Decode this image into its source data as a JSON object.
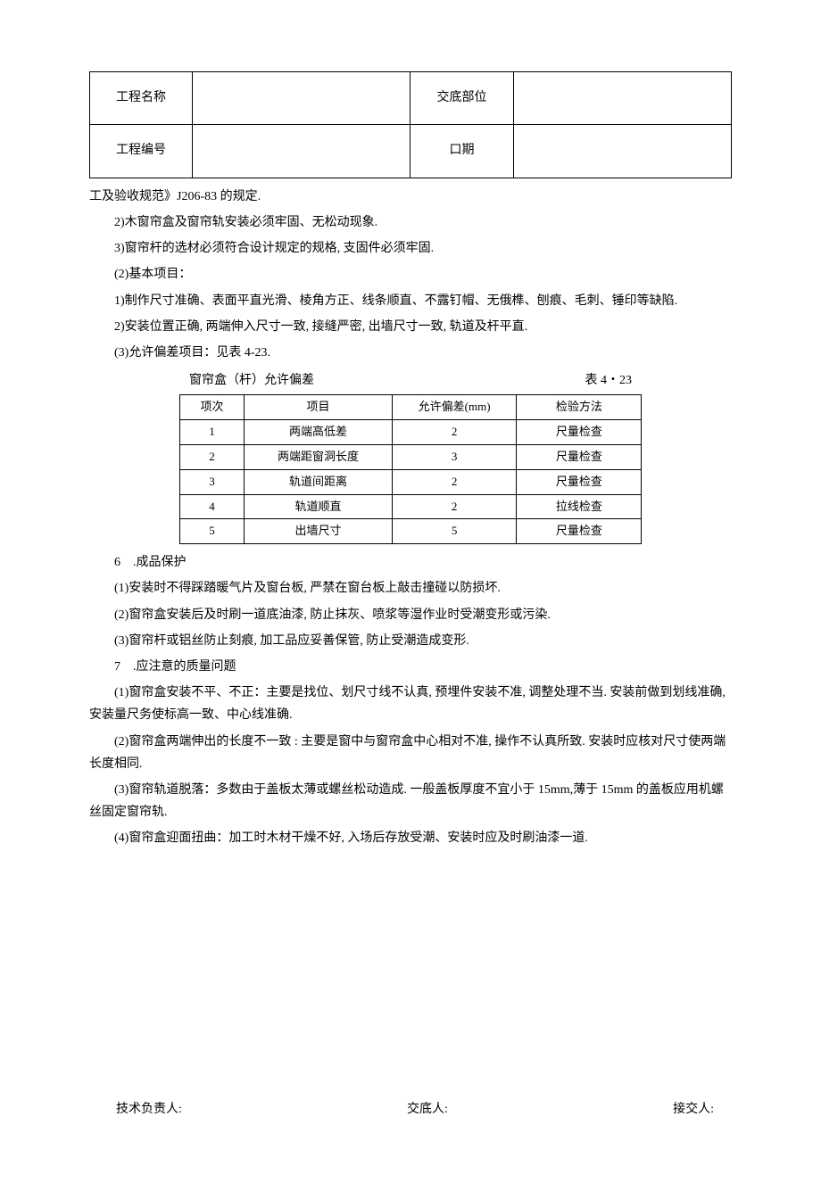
{
  "header": {
    "row1_label1": "工程名称",
    "row1_value1": "",
    "row1_label2": "交底部位",
    "row1_value2": "",
    "row2_label1": "工程编号",
    "row2_value1": "",
    "row2_label2": "口期",
    "row2_value2": ""
  },
  "body": {
    "line0": "工及验收规范》J206-83 的规定.",
    "line1": "2)木窗帘盒及窗帘轨安装必须牢固、无松动现象.",
    "line2": "3)窗帘杆的选材必须符合设计规定的规格, 支固件必须牢固.",
    "line3": "(2)基本项目：",
    "line4": "1)制作尺寸准确、表面平直光滑、棱角方正、线条顺直、不露钉帽、无俄榫、刨痕、毛刺、锤印等缺陷.",
    "line5": "2)安装位置正确, 两端伸入尺寸一致, 接缝严密, 出墙尺寸一致, 轨道及杆平直.",
    "line6": "(3)允许偏差项目：见表 4-23.",
    "tolerance_caption_left": "窗帘盒（杆）允许偏差",
    "tolerance_caption_right": "表 4・23",
    "tolerance_table": {
      "columns": [
        "项次",
        "项目",
        "允许偏差(mm)",
        "检验方法"
      ],
      "rows": [
        [
          "1",
          "两端高低差",
          "2",
          "尺量检查"
        ],
        [
          "2",
          "两端距窗洞长度",
          "3",
          "尺量检查"
        ],
        [
          "3",
          "轨道间距离",
          "2",
          "尺量检查"
        ],
        [
          "4",
          "轨道顺直",
          "2",
          "拉线检查"
        ],
        [
          "5",
          "出墙尺寸",
          "5",
          "尺量检查"
        ]
      ]
    },
    "section6_title": "6　.成品保护",
    "line7": "(1)安装时不得踩踏暖气片及窗台板, 严禁在窗台板上敲击撞碰以防损坏.",
    "line8": "(2)窗帘盒安装后及时刷一道底油漆, 防止抹灰、喷浆等湿作业时受潮变形或污染.",
    "line9": "(3)窗帘杆或铝丝防止刻痕, 加工品应妥善保管, 防止受潮造成变形.",
    "section7_title": "7　.应注意的质量问题",
    "line10": "(1)窗帘盒安装不平、不正：主要是找位、划尺寸线不认真, 预埋件安装不准, 调整处理不当. 安装前做到划线准确, 安装量尺务使标高一致、中心线准确.",
    "line11": "(2)窗帘盒两端伸出的长度不一致 : 主要是窗中与窗帘盒中心相对不准, 操作不认真所致. 安装时应核对尺寸使两端长度相同.",
    "line12": "(3)窗帘轨道脱落：多数由于盖板太薄或螺丝松动造成. 一般盖板厚度不宜小于 15mm,薄于 15mm 的盖板应用机螺丝固定窗帘轨.",
    "line13": "(4)窗帘盒迎面扭曲：加工时木材干燥不好, 入场后存放受潮、安装时应及时刷油漆一道."
  },
  "signatures": {
    "s1": "技术负责人:",
    "s2": "交底人:",
    "s3": "接交人:"
  }
}
